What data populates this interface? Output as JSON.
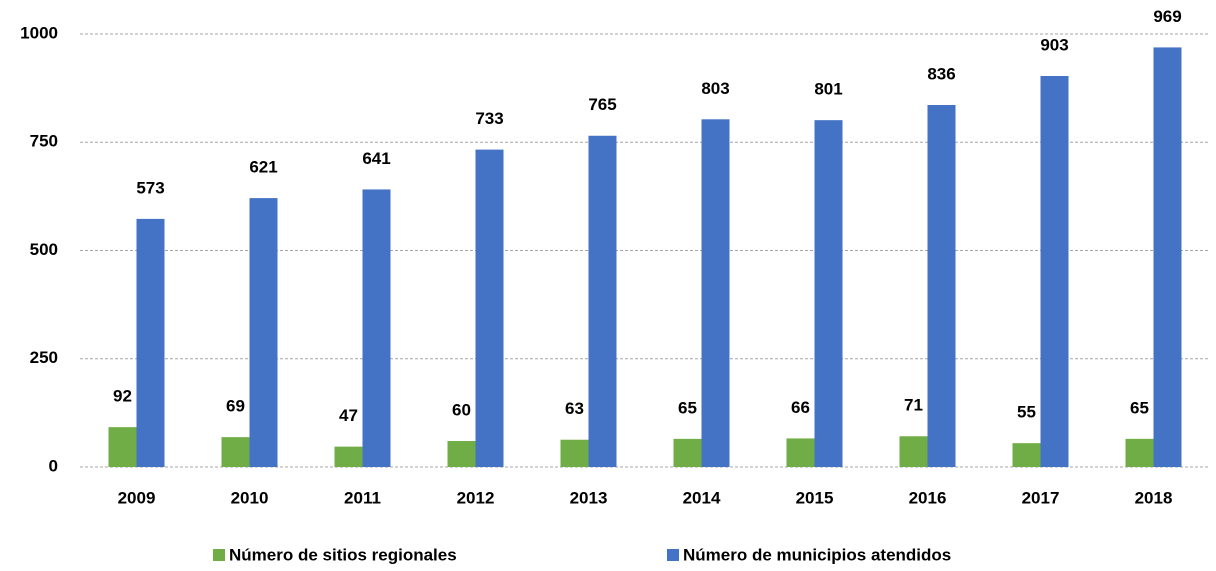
{
  "chart_data": {
    "type": "bar",
    "categories": [
      "2009",
      "2010",
      "2011",
      "2012",
      "2013",
      "2014",
      "2015",
      "2016",
      "2017",
      "2018"
    ],
    "series": [
      {
        "name": "Número de sitios regionales",
        "color": "#70ad47",
        "values": [
          92,
          69,
          47,
          60,
          63,
          65,
          66,
          71,
          55,
          65
        ]
      },
      {
        "name": "Número de municipios atendidos",
        "color": "#4472c4",
        "values": [
          573,
          621,
          641,
          733,
          765,
          803,
          801,
          836,
          903,
          969
        ]
      }
    ],
    "ylim": [
      0,
      1000
    ],
    "yticks": [
      0,
      250,
      500,
      750,
      1000
    ],
    "grid": true,
    "legend": "bottom"
  }
}
